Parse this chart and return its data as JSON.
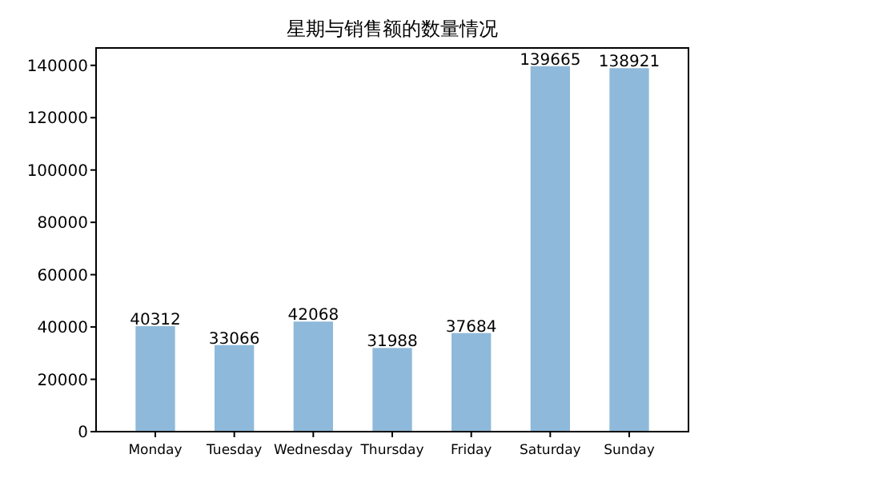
{
  "chart_data": {
    "type": "bar",
    "title": "星期与销售额的数量情况",
    "categories": [
      "Monday",
      "Tuesday",
      "Wednesday",
      "Thursday",
      "Friday",
      "Saturday",
      "Sunday"
    ],
    "values": [
      40312,
      33066,
      42068,
      31988,
      37684,
      139665,
      138921
    ],
    "color": "#8eb9da",
    "ylim": [
      0,
      146648
    ],
    "yticks": [
      0,
      20000,
      40000,
      60000,
      80000,
      100000,
      120000,
      140000
    ],
    "data_labels": true,
    "grid": false
  }
}
